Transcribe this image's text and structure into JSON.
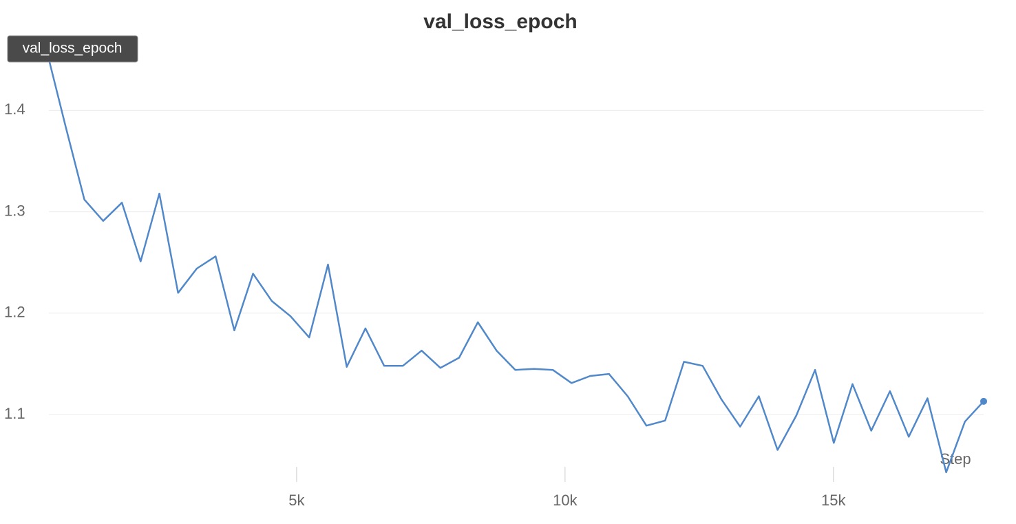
{
  "chart_data": {
    "type": "line",
    "title": "val_loss_epoch",
    "tooltip": "val_loss_epoch",
    "xlabel": "Step",
    "x": [
      349,
      698,
      1047,
      1396,
      1745,
      2094,
      2443,
      2792,
      3141,
      3490,
      3839,
      4188,
      4537,
      4886,
      5235,
      5584,
      5933,
      6282,
      6631,
      6980,
      7329,
      7678,
      8027,
      8376,
      8725,
      9074,
      9423,
      9772,
      10121,
      10470,
      10819,
      11168,
      11517,
      11866,
      12215,
      12564,
      12913,
      13262,
      13611,
      13960,
      14309,
      14658,
      15007,
      15356,
      15705,
      16054,
      16403,
      16752,
      17101,
      17450,
      17799
    ],
    "series": [
      {
        "name": "val_loss_epoch",
        "color": "#5088c9",
        "values": [
          1.458,
          1.384,
          1.312,
          1.291,
          1.309,
          1.251,
          1.318,
          1.22,
          1.244,
          1.256,
          1.183,
          1.239,
          1.212,
          1.197,
          1.176,
          1.248,
          1.147,
          1.185,
          1.148,
          1.148,
          1.163,
          1.146,
          1.156,
          1.191,
          1.163,
          1.144,
          1.145,
          1.144,
          1.131,
          1.138,
          1.14,
          1.118,
          1.089,
          1.094,
          1.152,
          1.148,
          1.115,
          1.088,
          1.118,
          1.065,
          1.099,
          1.144,
          1.072,
          1.13,
          1.084,
          1.123,
          1.078,
          1.116,
          1.043,
          1.093,
          1.113
        ]
      }
    ],
    "xlim": [
      0,
      17850
    ],
    "ylim": [
      1.03,
      1.475
    ],
    "xticks": [
      {
        "value": 5000,
        "label": "5k"
      },
      {
        "value": 10000,
        "label": "10k"
      },
      {
        "value": 15000,
        "label": "15k"
      }
    ],
    "yticks": [
      1.1,
      1.2,
      1.3,
      1.4
    ],
    "grid": true
  }
}
